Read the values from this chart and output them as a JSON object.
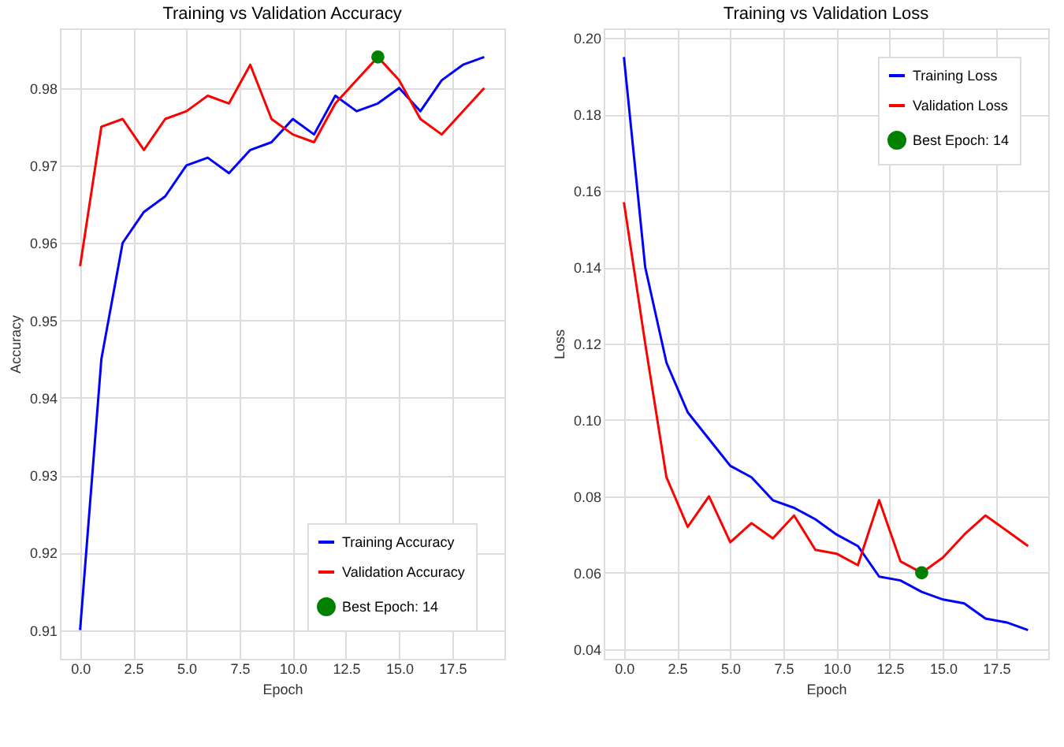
{
  "chart_data": [
    {
      "type": "line",
      "title": "Training vs Validation Accuracy",
      "xlabel": "Epoch",
      "ylabel": "Accuracy",
      "x": [
        0,
        1,
        2,
        3,
        4,
        5,
        6,
        7,
        8,
        9,
        10,
        11,
        12,
        13,
        14,
        15,
        16,
        17,
        18,
        19
      ],
      "series": [
        {
          "name": "Training Accuracy",
          "color": "#0000ff",
          "values": [
            0.91,
            0.945,
            0.96,
            0.964,
            0.966,
            0.97,
            0.971,
            0.969,
            0.972,
            0.973,
            0.976,
            0.974,
            0.979,
            0.977,
            0.978,
            0.98,
            0.977,
            0.981,
            0.983,
            0.984
          ]
        },
        {
          "name": "Validation Accuracy",
          "color": "#ff0000",
          "values": [
            0.957,
            0.975,
            0.976,
            0.972,
            0.976,
            0.977,
            0.979,
            0.978,
            0.983,
            0.976,
            0.974,
            0.973,
            0.978,
            0.981,
            0.984,
            0.981,
            0.976,
            0.974,
            0.977,
            0.98
          ]
        },
        {
          "name": "Best Epoch: 14",
          "type": "scatter",
          "color": "#008000",
          "x": [
            14
          ],
          "values": [
            0.984
          ]
        }
      ],
      "xlim": [
        -0.95,
        19.95
      ],
      "ylim": [
        0.9063,
        0.9877
      ],
      "xticks": [
        {
          "value": 0,
          "label": "0.0"
        },
        {
          "value": 2.5,
          "label": "2.5"
        },
        {
          "value": 5,
          "label": "5.0"
        },
        {
          "value": 7.5,
          "label": "7.5"
        },
        {
          "value": 10,
          "label": "10.0"
        },
        {
          "value": 12.5,
          "label": "12.5"
        },
        {
          "value": 15,
          "label": "15.0"
        },
        {
          "value": 17.5,
          "label": "17.5"
        }
      ],
      "yticks": [
        0.91,
        0.92,
        0.93,
        0.94,
        0.95,
        0.96,
        0.97,
        0.98
      ],
      "grid": true,
      "legend": "bottom right"
    },
    {
      "type": "line",
      "title": "Training vs Validation Loss",
      "xlabel": "Epoch",
      "ylabel": "Loss",
      "x": [
        0,
        1,
        2,
        3,
        4,
        5,
        6,
        7,
        8,
        9,
        10,
        11,
        12,
        13,
        14,
        15,
        16,
        17,
        18,
        19
      ],
      "series": [
        {
          "name": "Training Loss",
          "color": "#0000ff",
          "values": [
            0.195,
            0.14,
            0.115,
            0.102,
            0.095,
            0.088,
            0.085,
            0.079,
            0.077,
            0.074,
            0.07,
            0.067,
            0.059,
            0.058,
            0.055,
            0.053,
            0.052,
            0.048,
            0.047,
            0.045
          ]
        },
        {
          "name": "Validation Loss",
          "color": "#ff0000",
          "values": [
            0.157,
            0.12,
            0.085,
            0.072,
            0.08,
            0.068,
            0.073,
            0.069,
            0.075,
            0.066,
            0.065,
            0.062,
            0.079,
            0.063,
            0.06,
            0.064,
            0.07,
            0.075,
            0.071,
            0.067
          ]
        },
        {
          "name": "Best Epoch: 14",
          "type": "scatter",
          "color": "#008000",
          "x": [
            14
          ],
          "values": [
            0.06
          ]
        }
      ],
      "xlim": [
        -0.95,
        19.95
      ],
      "ylim": [
        0.0375,
        0.2025
      ],
      "xticks": [
        {
          "value": 0,
          "label": "0.0"
        },
        {
          "value": 2.5,
          "label": "2.5"
        },
        {
          "value": 5,
          "label": "5.0"
        },
        {
          "value": 7.5,
          "label": "7.5"
        },
        {
          "value": 10,
          "label": "10.0"
        },
        {
          "value": 12.5,
          "label": "12.5"
        },
        {
          "value": 15,
          "label": "15.0"
        },
        {
          "value": 17.5,
          "label": "17.5"
        }
      ],
      "yticks": [
        0.04,
        0.06,
        0.08,
        {
          "value": 0.1,
          "label": "0.10"
        },
        0.12,
        0.14,
        0.16,
        0.18,
        {
          "value": 0.2,
          "label": "0.20"
        }
      ],
      "grid": true,
      "legend": "top right"
    }
  ]
}
